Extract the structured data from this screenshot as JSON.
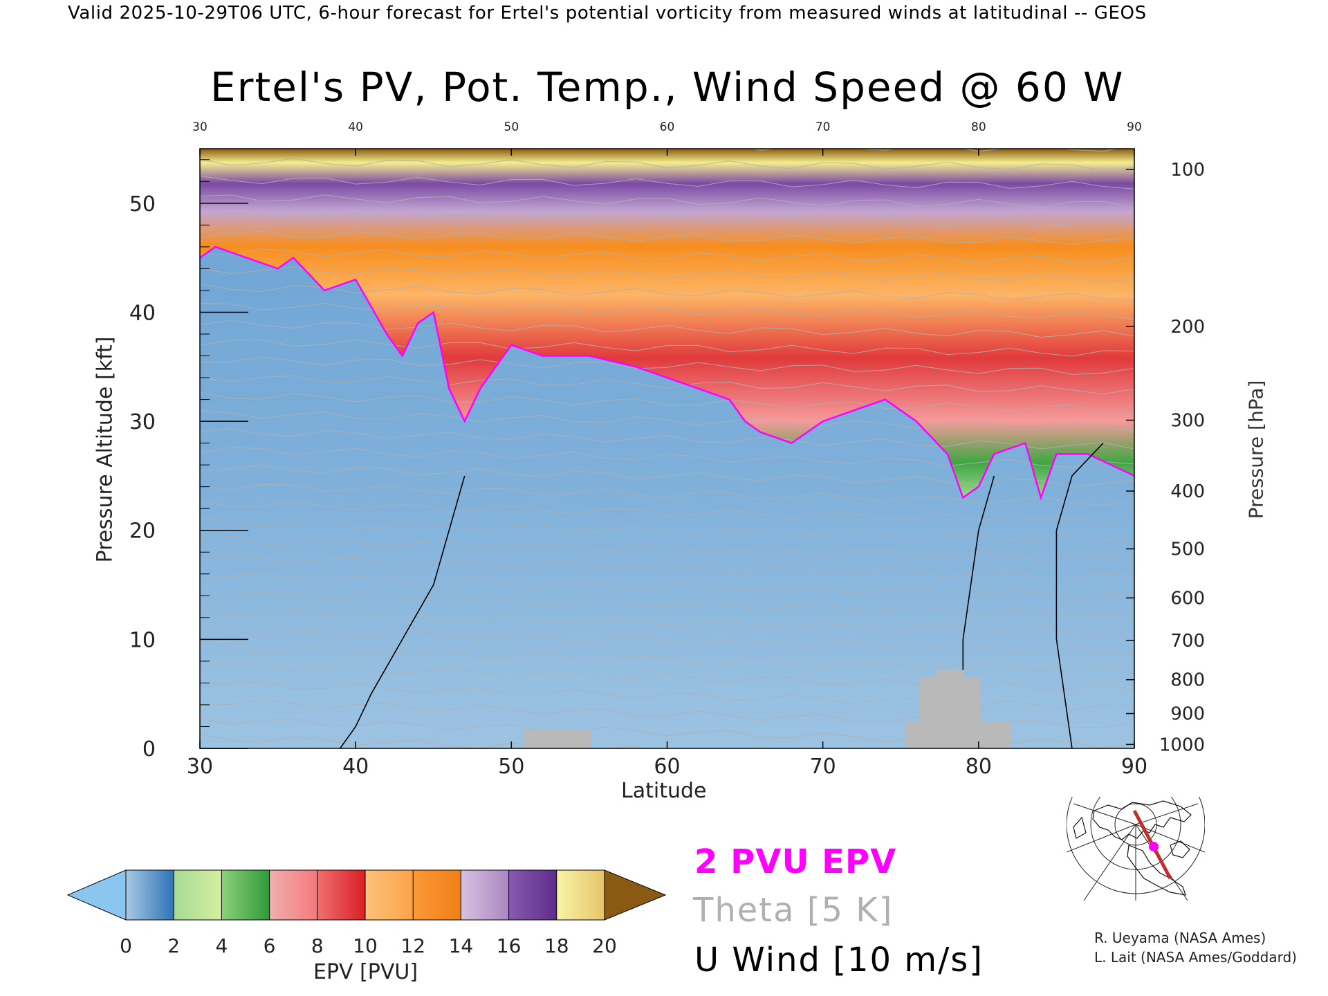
{
  "header": "Valid 2025-10-29T06 UTC, 6-hour forecast for Ertel's potential vorticity from measured winds at latitudinal -- GEOS",
  "chart_data": {
    "type": "heatmap",
    "title": "Ertel's PV, Pot. Temp., Wind Speed @ 60 W",
    "xlabel": "Latitude",
    "ylabel": "Pressure Altitude [kft]",
    "y2label": "Pressure [hPa]",
    "xlim": [
      30,
      90
    ],
    "ylim": [
      0,
      55
    ],
    "x_ticks": [
      "30",
      "40",
      "50",
      "60",
      "70",
      "80",
      "90"
    ],
    "top_ticks": [
      "30",
      "40",
      "50",
      "60",
      "70",
      "80",
      "90"
    ],
    "y_ticks": [
      "0",
      "10",
      "20",
      "30",
      "40",
      "50"
    ],
    "pressure_ticks": [
      {
        "label": "1000",
        "kft": 0.36
      },
      {
        "label": "900",
        "kft": 3.2
      },
      {
        "label": "800",
        "kft": 6.3
      },
      {
        "label": "700",
        "kft": 9.9
      },
      {
        "label": "600",
        "kft": 13.8
      },
      {
        "label": "500",
        "kft": 18.3
      },
      {
        "label": "400",
        "kft": 23.6
      },
      {
        "label": "300",
        "kft": 30.1
      },
      {
        "label": "200",
        "kft": 38.7
      },
      {
        "label": "100",
        "kft": 53.1
      }
    ],
    "epv_colorbar": {
      "label": "EPV [PVU]",
      "ticks": [
        "0",
        "2",
        "4",
        "6",
        "8",
        "10",
        "12",
        "14",
        "16",
        "18",
        "20"
      ],
      "colors": [
        "#8ac6f0",
        "#a9c9e3",
        "#5e97c8",
        "#a6d996",
        "#4cae4c",
        "#f5a3a3",
        "#e0393b",
        "#fdb566",
        "#f78e1e",
        "#c3a6d1",
        "#7b49a4",
        "#f4ee8e",
        "#8a5a12"
      ]
    },
    "tropopause_kft": [
      [
        30,
        45
      ],
      [
        31,
        46
      ],
      [
        33,
        45
      ],
      [
        35,
        44
      ],
      [
        36,
        45
      ],
      [
        38,
        42
      ],
      [
        40,
        43
      ],
      [
        42,
        38
      ],
      [
        43,
        36
      ],
      [
        44,
        39
      ],
      [
        45,
        40
      ],
      [
        46,
        33
      ],
      [
        47,
        30
      ],
      [
        48,
        33
      ],
      [
        49,
        35
      ],
      [
        50,
        37
      ],
      [
        52,
        36
      ],
      [
        55,
        36
      ],
      [
        58,
        35
      ],
      [
        60,
        34
      ],
      [
        62,
        33
      ],
      [
        64,
        32
      ],
      [
        65,
        30
      ],
      [
        66,
        29
      ],
      [
        68,
        28
      ],
      [
        70,
        30
      ],
      [
        72,
        31
      ],
      [
        74,
        32
      ],
      [
        76,
        30
      ],
      [
        78,
        27
      ],
      [
        79,
        23
      ],
      [
        80,
        24
      ],
      [
        81,
        27
      ],
      [
        83,
        28
      ],
      [
        84,
        23
      ],
      [
        85,
        27
      ],
      [
        87,
        27
      ],
      [
        90,
        25
      ]
    ],
    "zero_wind_contours": [
      [
        [
          47,
          25
        ],
        [
          46,
          20
        ],
        [
          45,
          15
        ],
        [
          43,
          10
        ],
        [
          41,
          5
        ],
        [
          40,
          2
        ],
        [
          39,
          0
        ]
      ],
      [
        [
          79,
          0
        ],
        [
          79,
          10
        ],
        [
          80,
          20
        ],
        [
          81,
          25
        ]
      ],
      [
        [
          86,
          0
        ],
        [
          85,
          10
        ],
        [
          85,
          20
        ],
        [
          86,
          25
        ],
        [
          88,
          28
        ]
      ]
    ],
    "terrain": [
      {
        "x0": 50.8,
        "x1": 55.1,
        "kft": 1.7
      },
      {
        "x0": 75.3,
        "x1": 82.1,
        "kft": 2.4
      },
      {
        "x0": 76.2,
        "x1": 80.1,
        "kft": 6.5
      },
      {
        "x0": 77.2,
        "x1": 79.1,
        "kft": 7.2
      }
    ]
  },
  "legend": {
    "epv_line": "2 PVU EPV",
    "theta": "Theta [5 K]",
    "uwind": "U Wind [10 m/s]",
    "epv_color": "#ff00ff",
    "theta_color": "#b0b0b0",
    "uwind_color": "#000000"
  },
  "credits": {
    "line1": "R. Ueyama (NASA Ames)",
    "line2": "L. Lait (NASA Ames/Goddard)"
  },
  "inset_map": {
    "marker_color": "#ff00ff",
    "track_color": "#c0302a"
  }
}
